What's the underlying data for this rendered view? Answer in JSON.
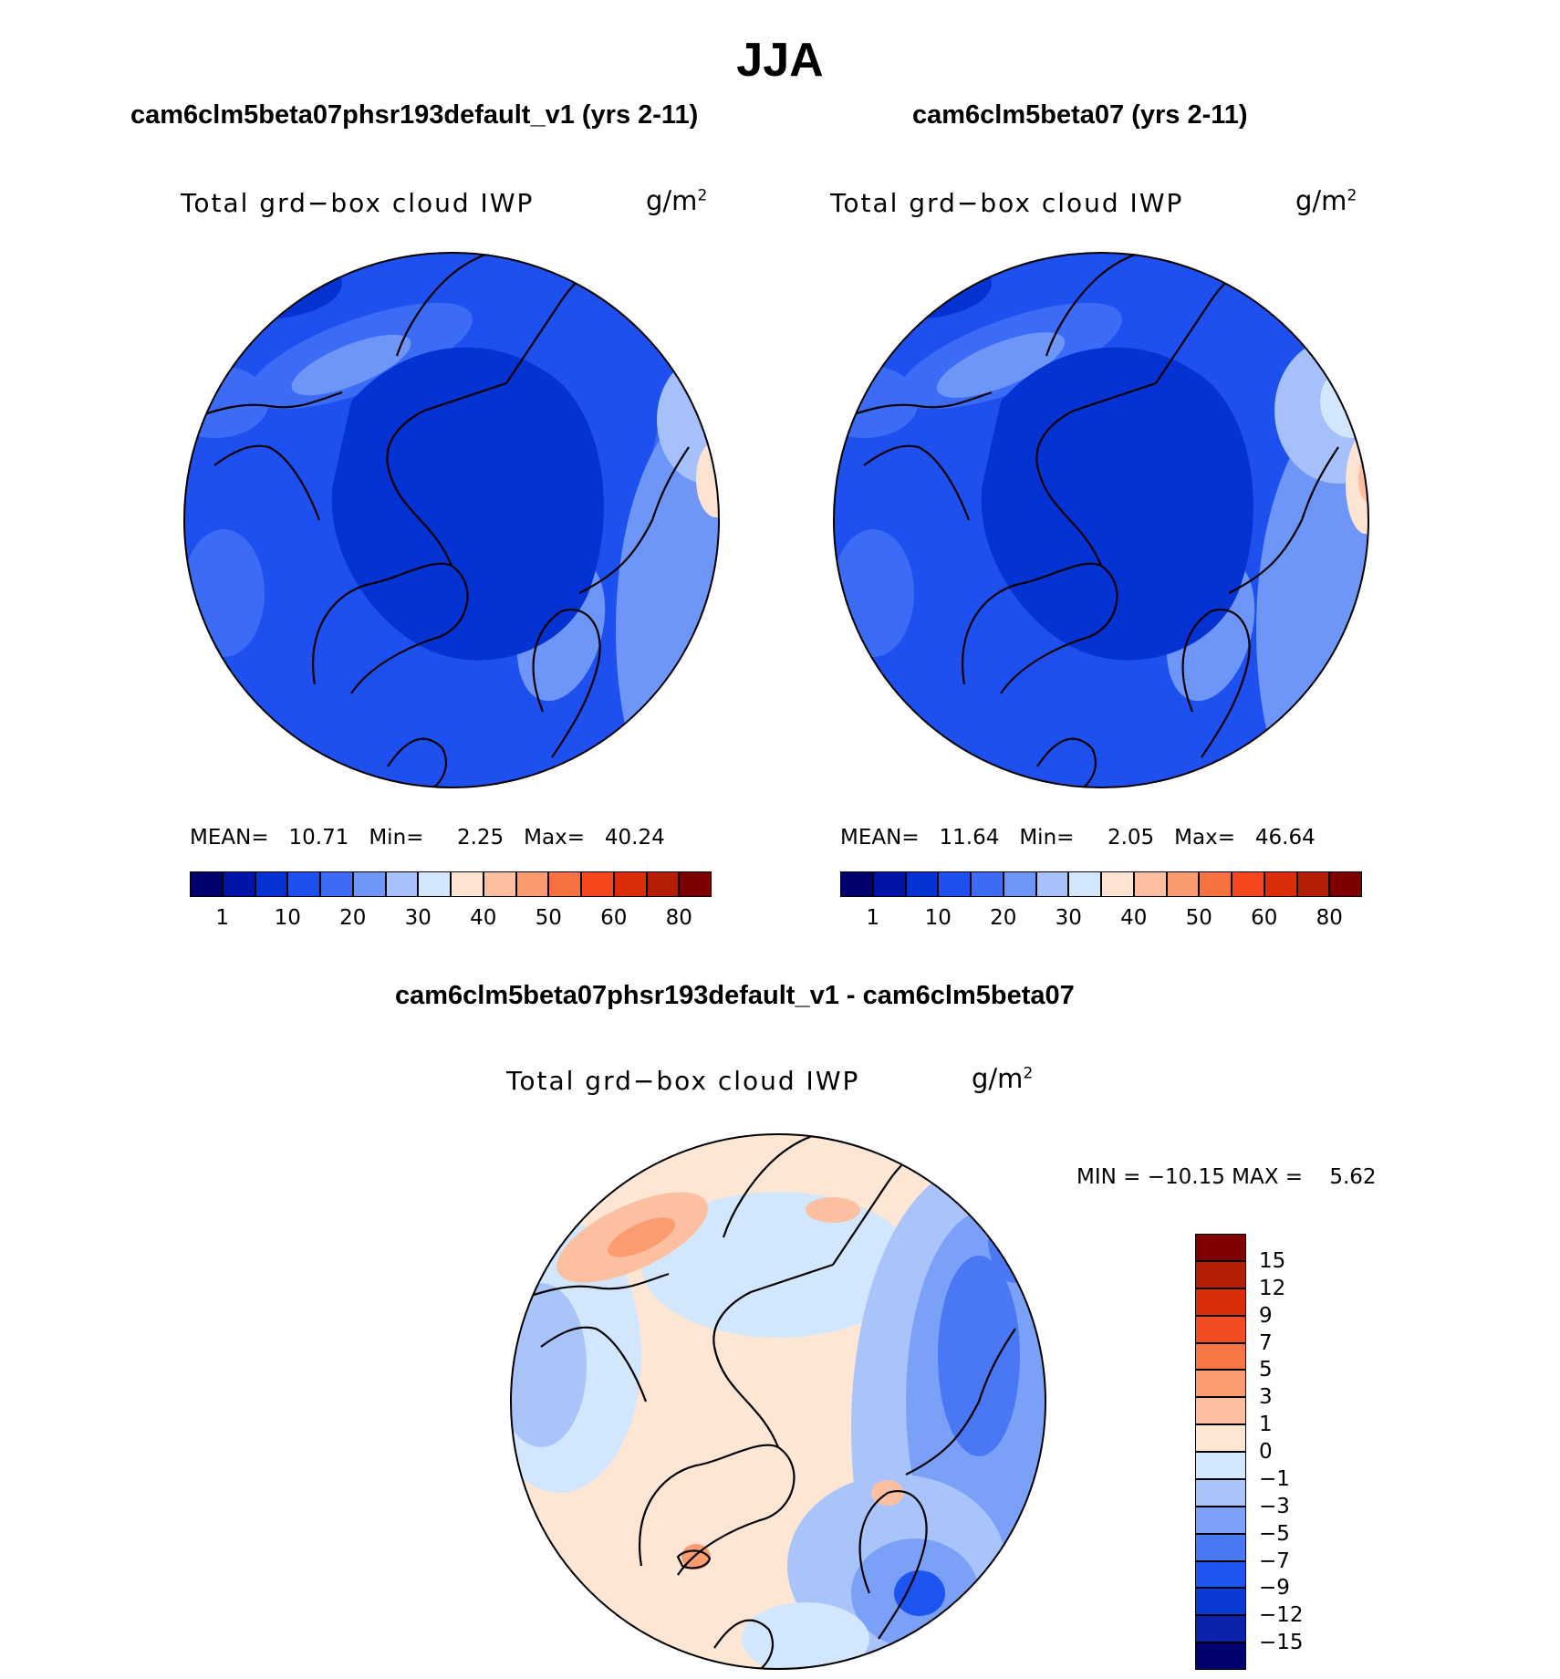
{
  "title": "JJA",
  "panels": [
    {
      "title": "cam6clm5beta07phsr193default_v1 (yrs 2-11)",
      "variable": "Total grd−box cloud IWP",
      "units_base": "g/m",
      "units_exp": "2",
      "stats": {
        "mean_label": "MEAN=",
        "mean": "10.71",
        "min_label": "Min=",
        "min": "2.25",
        "max_label": "Max=",
        "max": "40.24"
      }
    },
    {
      "title": "cam6clm5beta07 (yrs 2-11)",
      "variable": "Total grd−box cloud IWP",
      "units_base": "g/m",
      "units_exp": "2",
      "stats": {
        "mean_label": "MEAN=",
        "mean": "11.64",
        "min_label": "Min=",
        "min": "2.05",
        "max_label": "Max=",
        "max": "46.64"
      }
    }
  ],
  "diff_panel": {
    "title": "cam6clm5beta07phsr193default_v1 - cam6clm5beta07",
    "variable": "Total grd−box cloud IWP",
    "units_base": "g/m",
    "units_exp": "2",
    "minmax_text": "MIN = −10.15 MAX =    5.62"
  },
  "colorbar_abs": {
    "colors": [
      "#00006e",
      "#0014a8",
      "#0532d2",
      "#1e50f0",
      "#3c6cf5",
      "#6e96f8",
      "#a5c0fb",
      "#d2e6fd",
      "#fde4d2",
      "#fcc0a0",
      "#fa9a6e",
      "#f77240",
      "#f5461e",
      "#dc2d0a",
      "#b41e05",
      "#7d0000"
    ],
    "labels": [
      "1",
      "10",
      "20",
      "30",
      "40",
      "50",
      "60",
      "80"
    ]
  },
  "colorbar_diff": {
    "colors": [
      "#000070",
      "#0a23aa",
      "#0a3ad6",
      "#1e55f0",
      "#4a78f5",
      "#7ba0f8",
      "#a9c4fb",
      "#d2e6fd",
      "#fde6d4",
      "#fcc0a0",
      "#fa9c70",
      "#f87546",
      "#f54b22",
      "#dc2d0a",
      "#b41e05",
      "#800000"
    ],
    "labels": [
      "−15",
      "−12",
      "−9",
      "−7",
      "−5",
      "−3",
      "−1",
      "0",
      "1",
      "3",
      "5",
      "7",
      "9",
      "12",
      "15"
    ]
  }
}
